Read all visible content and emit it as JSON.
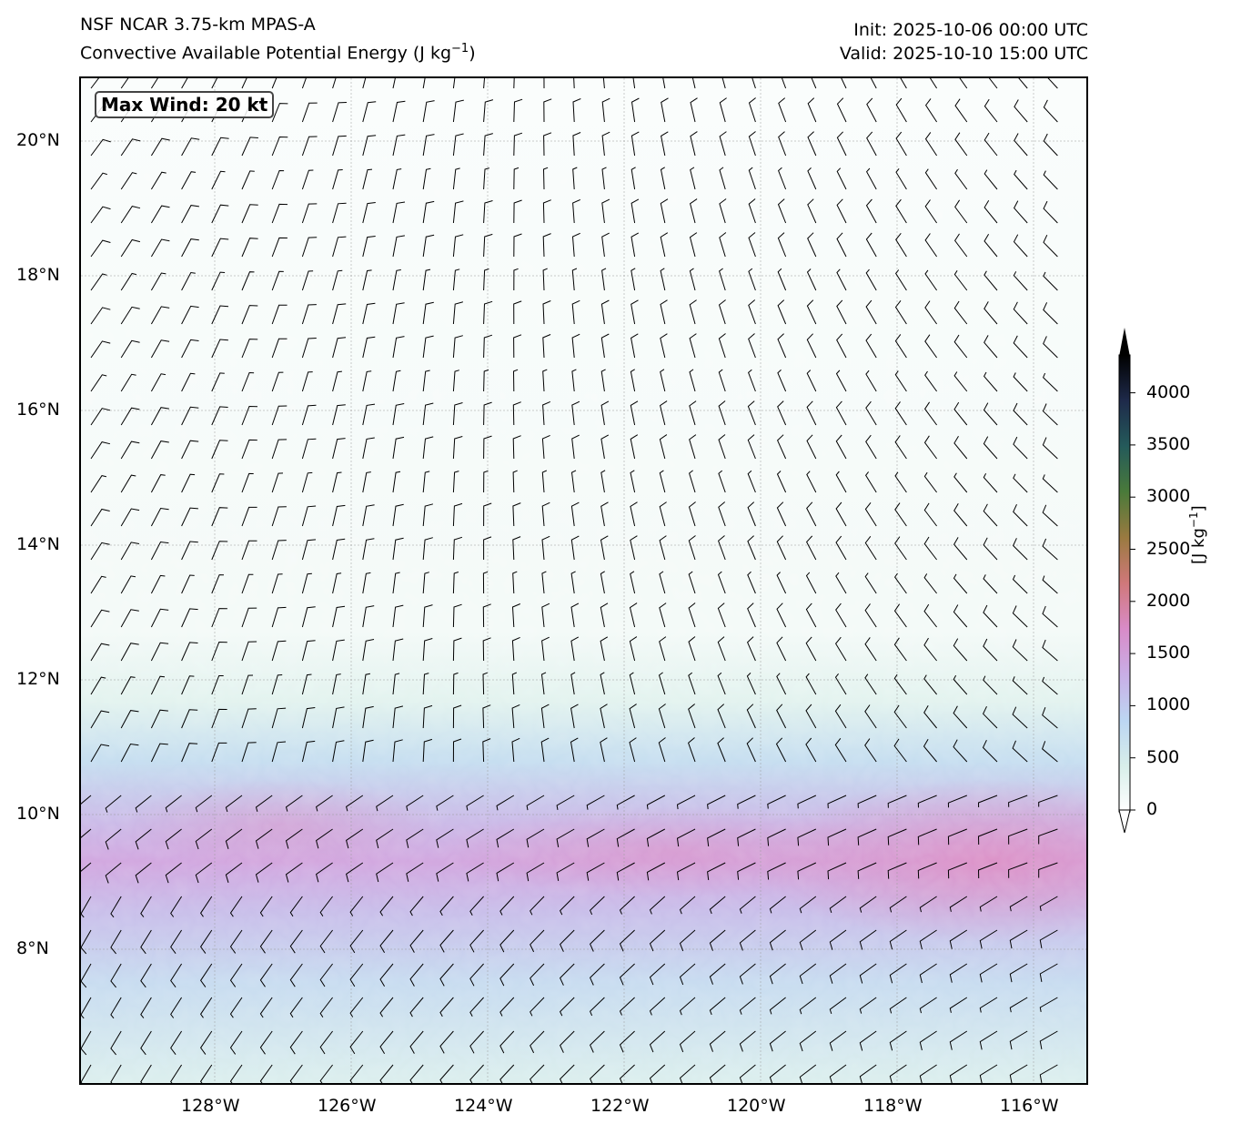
{
  "header": {
    "model": "NSF NCAR 3.75-km MPAS-A",
    "field": "Convective Available Potential Energy (J kg",
    "field_exp": "−1",
    "field_close": ")",
    "init": "Init: 2025-10-06 00:00 UTC",
    "valid": "Valid: 2025-10-10 15:00 UTC"
  },
  "map": {
    "max_wind_label": "Max Wind: 20 kt",
    "lat_ticks": [
      "20°N",
      "18°N",
      "16°N",
      "14°N",
      "12°N",
      "10°N",
      "8°N"
    ],
    "lon_ticks": [
      "128°W",
      "126°W",
      "124°W",
      "122°W",
      "120°W",
      "118°W",
      "116°W"
    ],
    "extent": {
      "lon_west": -130,
      "lon_east": -115.2,
      "lat_south": 6,
      "lat_north": 21
    }
  },
  "colorbar": {
    "ticks": [
      "0",
      "500",
      "1000",
      "1500",
      "2000",
      "2500",
      "3000",
      "3500",
      "4000"
    ],
    "unit": "[J kg",
    "unit_exp": "−1",
    "unit_close": "]",
    "range": [
      0,
      4300
    ],
    "colors": [
      "#ffffff",
      "#d8eeea",
      "#bcd6f2",
      "#c9aee6",
      "#d88bc8",
      "#d0787a",
      "#9a7a40",
      "#4a7a3a",
      "#245a5a",
      "#1e2a4a",
      "#000000"
    ]
  }
}
